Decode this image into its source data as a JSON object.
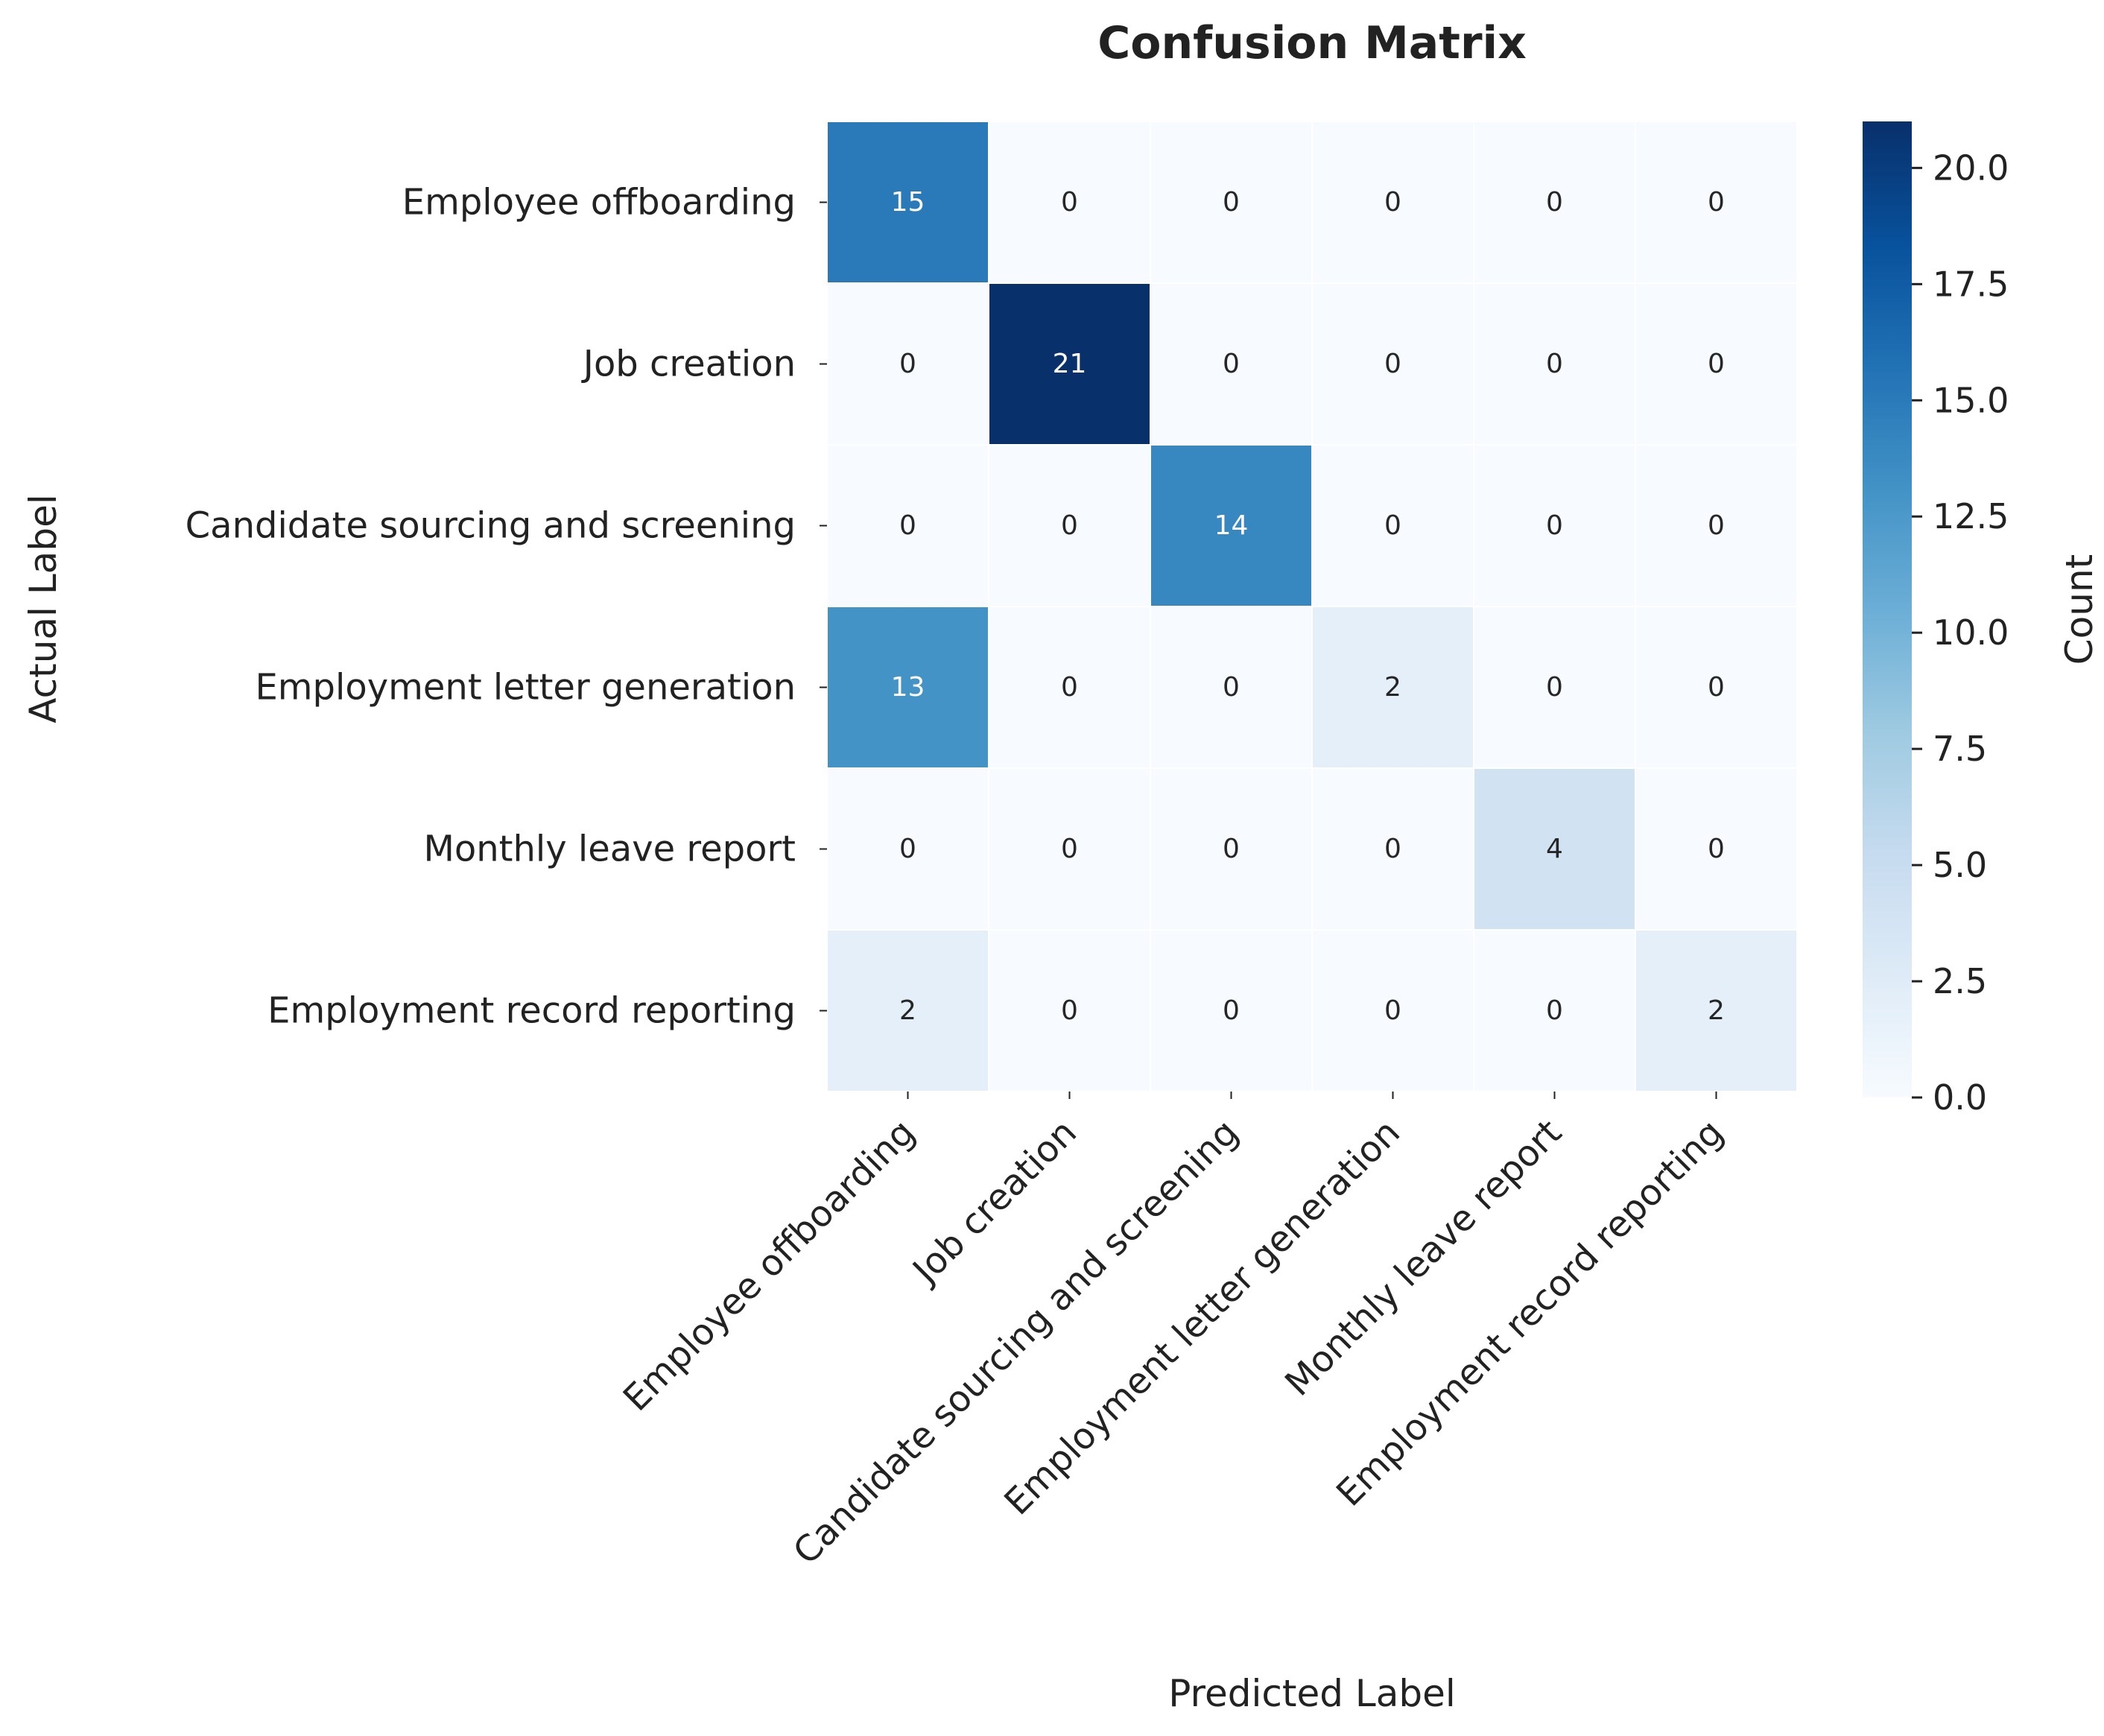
{
  "chart_data": {
    "type": "heatmap",
    "title": "Confusion Matrix",
    "xlabel": "Predicted Label",
    "ylabel": "Actual Label",
    "colorbar_label": "Count",
    "colormap": "Blues",
    "vmin": 0,
    "vmax": 21,
    "colorbar_ticks": [
      "0.0",
      "2.5",
      "5.0",
      "7.5",
      "10.0",
      "12.5",
      "15.0",
      "17.5",
      "20.0"
    ],
    "x_categories": [
      "Employee offboarding",
      "Job creation",
      "Candidate sourcing and screening",
      "Employment letter generation",
      "Monthly leave report",
      "Employment record reporting"
    ],
    "y_categories": [
      "Employee offboarding",
      "Job creation",
      "Candidate sourcing and screening",
      "Employment letter generation",
      "Monthly leave report",
      "Employment record reporting"
    ],
    "values": [
      [
        15,
        0,
        0,
        0,
        0,
        0
      ],
      [
        0,
        21,
        0,
        0,
        0,
        0
      ],
      [
        0,
        0,
        14,
        0,
        0,
        0
      ],
      [
        13,
        0,
        0,
        2,
        0,
        0
      ],
      [
        0,
        0,
        0,
        0,
        4,
        0
      ],
      [
        2,
        0,
        0,
        0,
        0,
        2
      ]
    ]
  }
}
